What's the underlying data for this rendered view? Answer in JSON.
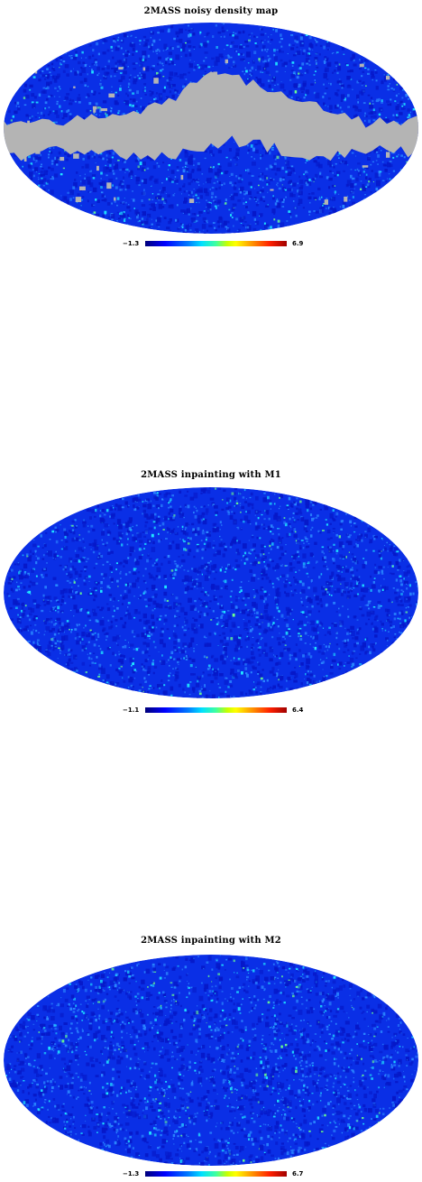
{
  "panels": [
    {
      "title": "2MASS noisy density map",
      "colorbar_min": "−1.3",
      "colorbar_max": "6.9",
      "masked": true
    },
    {
      "title": "2MASS inpainting with M1",
      "colorbar_min": "−1.1",
      "colorbar_max": "6.4",
      "masked": false
    },
    {
      "title": "2MASS inpainting with M2",
      "colorbar_min": "−1.3",
      "colorbar_max": "6.7",
      "masked": false
    }
  ],
  "colors": {
    "mask": "#b4b4b4",
    "base_blue": "#0a2fe6",
    "deep_blue": "#0618c8",
    "light_blue": "#2a86ff",
    "cyan": "#20e6ff",
    "green": "#6cff8c"
  },
  "projection": "mollweide"
}
